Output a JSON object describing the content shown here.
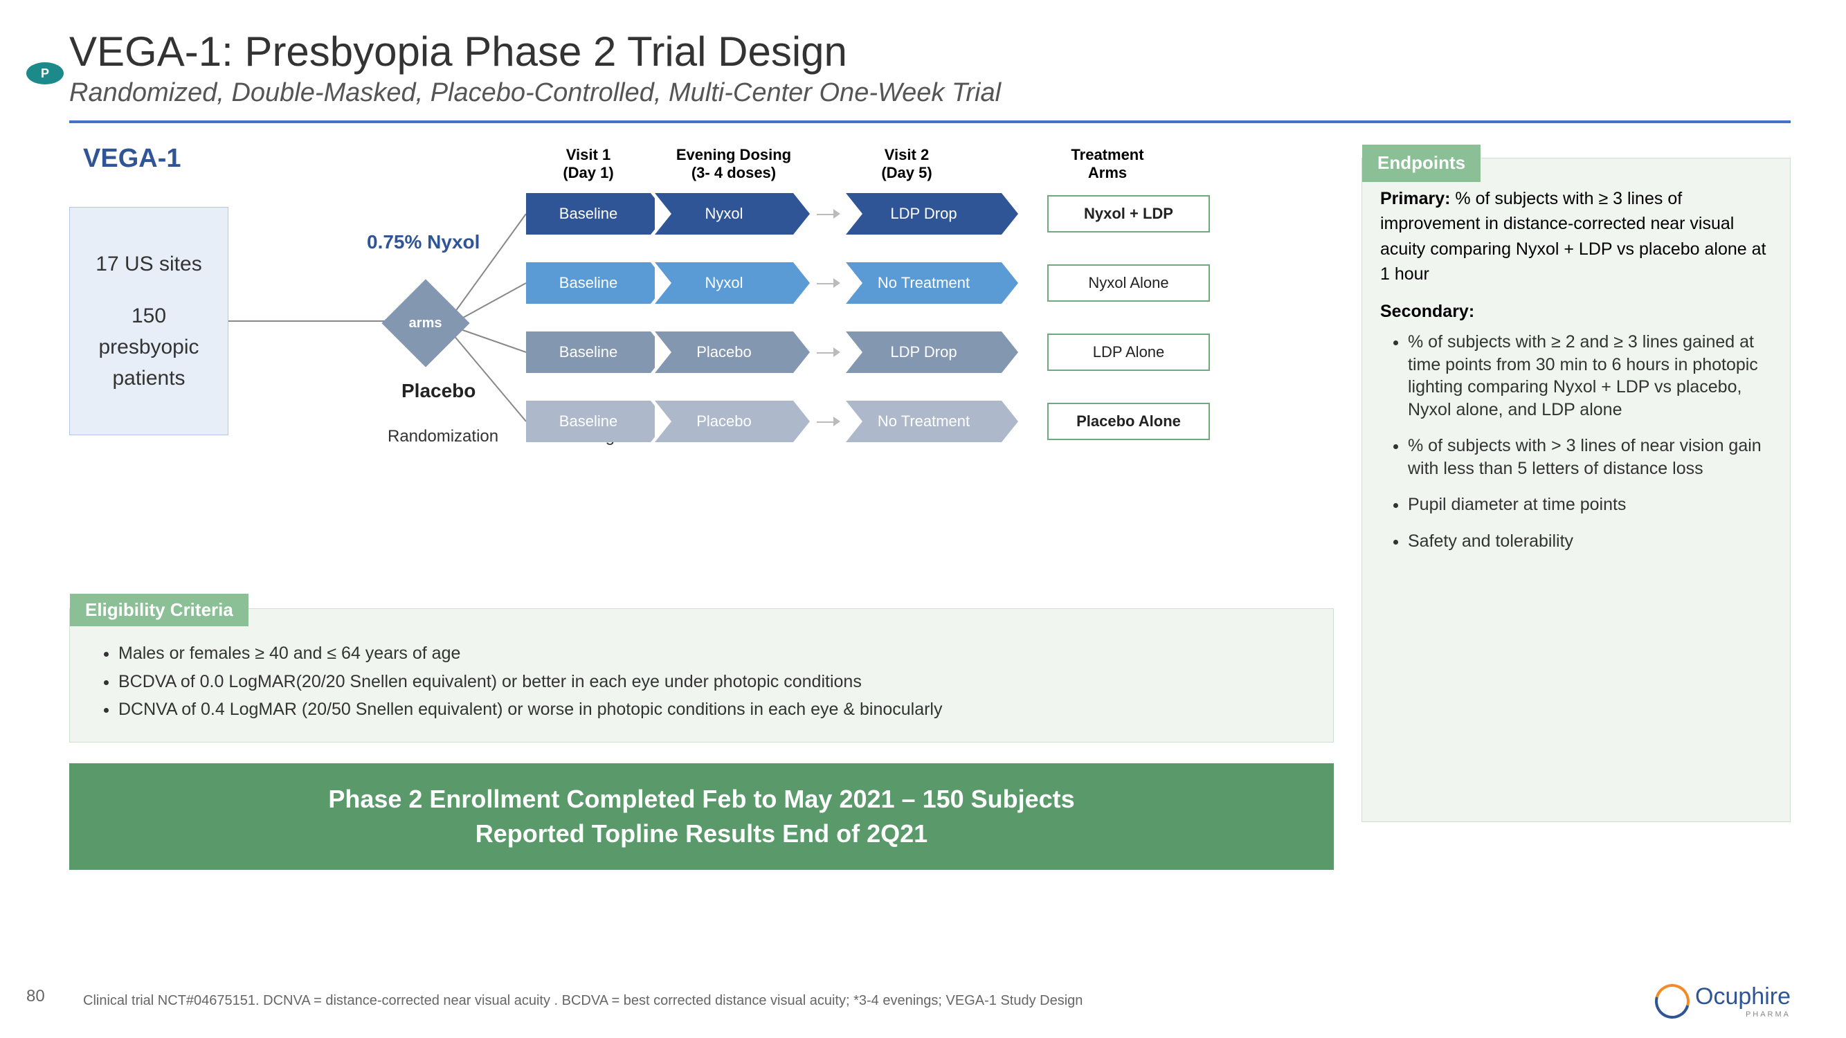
{
  "badge": "P",
  "title": "VEGA-1: Presbyopia Phase 2 Trial Design",
  "subtitle": "Randomized, Double-Masked, Placebo-Controlled, Multi-Center One-Week Trial",
  "vega_label": "VEGA-1",
  "patients_box": {
    "line1": "17 US sites",
    "line2": "150 presbyopic patients"
  },
  "arms_diamond": "arms",
  "branch_nyxol": "0.75% Nyxol",
  "branch_placebo": "Placebo",
  "randomization_label": "Randomization",
  "screening_label": "Screening",
  "col_headers": {
    "visit1": "Visit 1\n(Day 1)",
    "dosing": "Evening Dosing\n(3- 4 doses)",
    "visit2": "Visit 2\n(Day 5)",
    "arms": "Treatment\nArms"
  },
  "arm_rows": [
    {
      "baseline": "Baseline",
      "dose": "Nyxol",
      "day5": "LDP Drop",
      "arm": "Nyxol + LDP",
      "bold": true,
      "color": "c-dark"
    },
    {
      "baseline": "Baseline",
      "dose": "Nyxol",
      "day5": "No Treatment",
      "arm": "Nyxol Alone",
      "bold": false,
      "color": "c-med"
    },
    {
      "baseline": "Baseline",
      "dose": "Placebo",
      "day5": "LDP Drop",
      "arm": "LDP Alone",
      "bold": false,
      "color": "c-grey"
    },
    {
      "baseline": "Baseline",
      "dose": "Placebo",
      "day5": "No Treatment",
      "arm": "Placebo Alone",
      "bold": true,
      "color": "c-lgrey"
    }
  ],
  "eligibility": {
    "title": "Eligibility Criteria",
    "items": [
      "Males or females ≥ 40 and ≤ 64 years of age",
      "BCDVA of 0.0 LogMAR(20/20 Snellen equivalent) or better in each eye under photopic conditions",
      "DCNVA of 0.4 LogMAR (20/50 Snellen equivalent) or worse in photopic conditions in each eye & binocularly"
    ]
  },
  "banner": "Phase 2 Enrollment Completed Feb to May 2021 – 150 Subjects\nReported Topline Results End of 2Q21",
  "endpoints": {
    "title": "Endpoints",
    "primary_label": "Primary:",
    "primary": " % of subjects with ≥ 3 lines of improvement in distance-corrected near visual acuity comparing Nyxol + LDP vs placebo alone at 1 hour",
    "secondary_label": "Secondary:",
    "secondary": [
      "% of subjects with ≥ 2 and ≥ 3 lines gained at time points from 30 min to 6 hours in photopic lighting comparing Nyxol + LDP vs placebo, Nyxol alone, and LDP alone",
      "% of subjects with > 3 lines of near vision gain with less than 5 letters of distance loss",
      "Pupil diameter at time points",
      "Safety and tolerability"
    ]
  },
  "page_number": "80",
  "footnote": "Clinical trial NCT#04675151. DCNVA = distance-corrected near visual acuity . BCDVA = best corrected distance visual acuity; *3-4 evenings; VEGA-1 Study Design",
  "logo": {
    "name": "Ocuphire",
    "sub": "PHARMA"
  },
  "colors": {
    "rule": "#4472c4",
    "arm_dark": "#2f5597",
    "arm_med": "#5b9bd5",
    "arm_grey": "#8497b0",
    "arm_lgrey": "#adb9ca",
    "green_tab": "#8bbf96",
    "green_banner": "#5a9a6a",
    "box_border": "#6faa7c"
  }
}
